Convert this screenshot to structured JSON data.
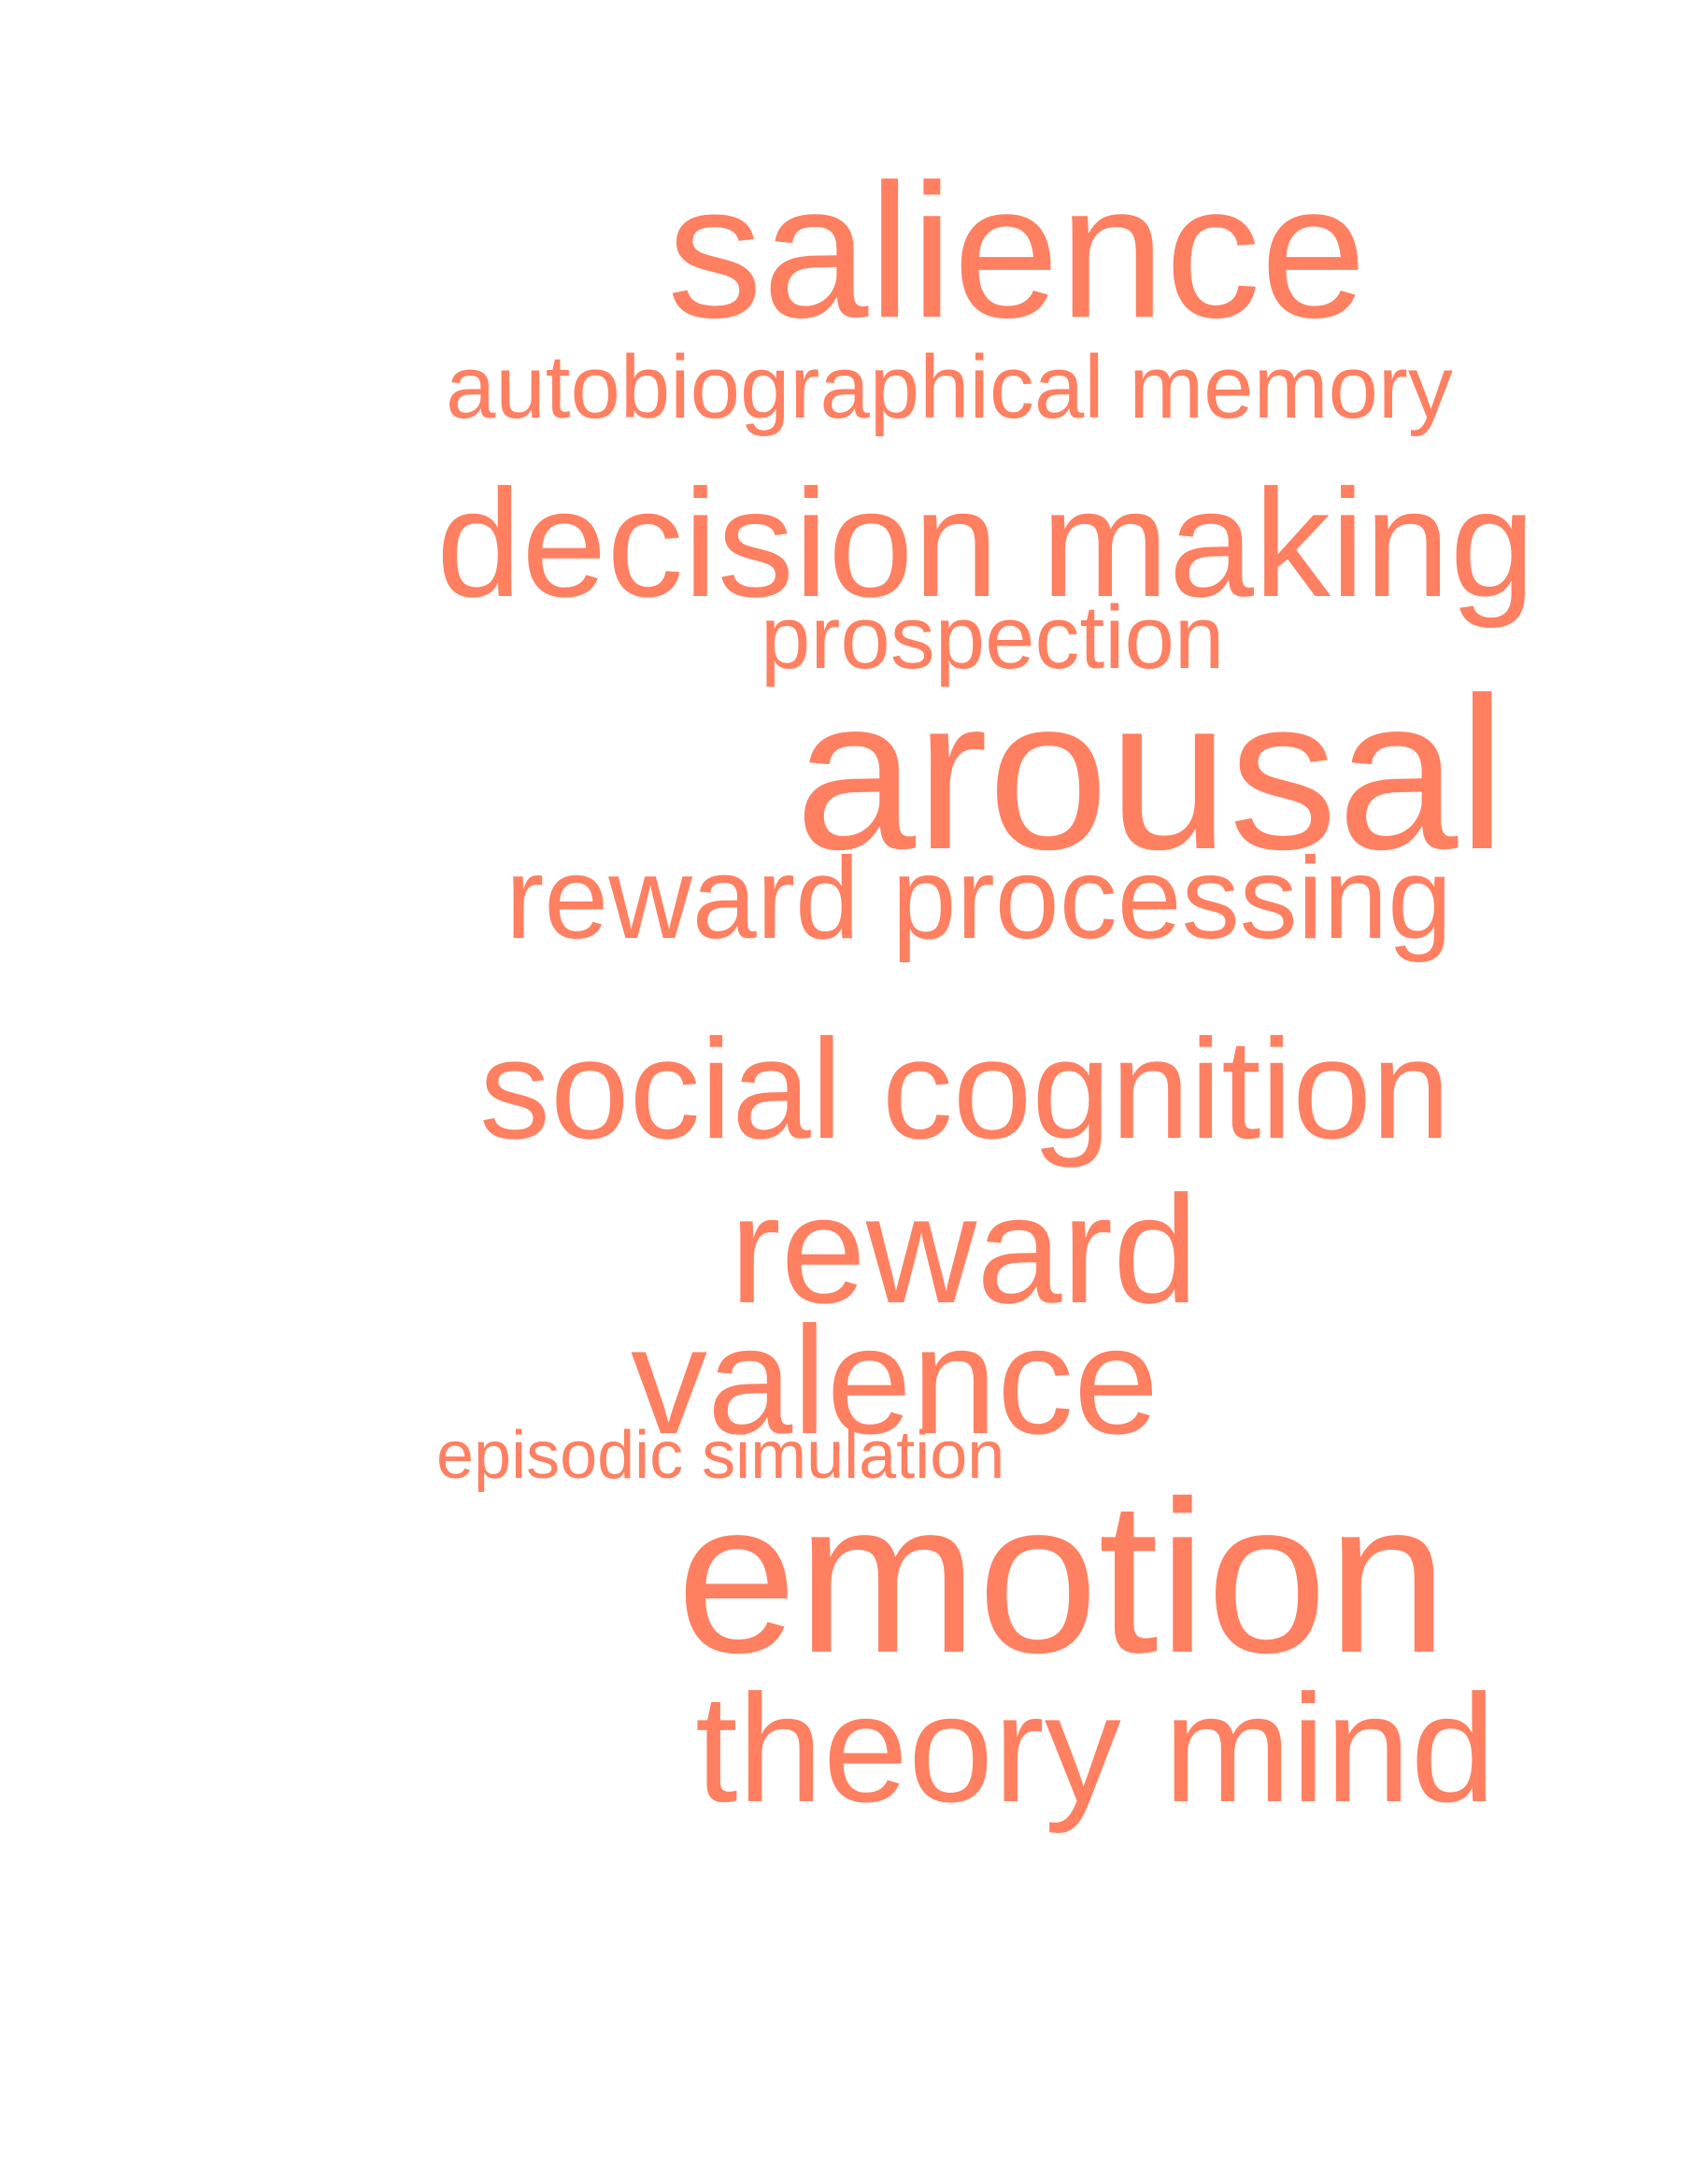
{
  "word_cloud": {
    "color": "#FF7F61",
    "words": [
      {
        "id": "salience",
        "text": "salience",
        "weight": 5
      },
      {
        "id": "autobiographical-memory",
        "text": "autobiographical memory",
        "weight": 2
      },
      {
        "id": "decision-making",
        "text": "decision making",
        "weight": 4
      },
      {
        "id": "prospection",
        "text": "prospection",
        "weight": 2
      },
      {
        "id": "arousal",
        "text": "arousal",
        "weight": 6
      },
      {
        "id": "reward-processing",
        "text": "reward processing",
        "weight": 3
      },
      {
        "id": "social-cognition",
        "text": "social cognition",
        "weight": 4
      },
      {
        "id": "reward",
        "text": "reward",
        "weight": 4
      },
      {
        "id": "valence",
        "text": "valence",
        "weight": 4
      },
      {
        "id": "episodic-simulation",
        "text": "episodic simulation",
        "weight": 1
      },
      {
        "id": "emotion",
        "text": "emotion",
        "weight": 6
      },
      {
        "id": "theory-mind",
        "text": "theory mind",
        "weight": 4
      }
    ]
  }
}
